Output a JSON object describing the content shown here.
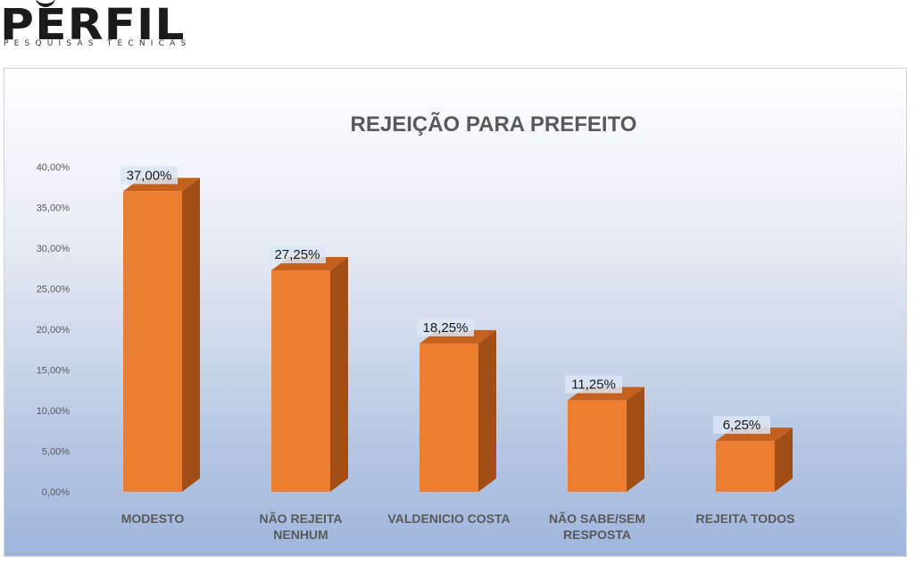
{
  "logo": {
    "brand": "PERFIL",
    "tagline": "PESQUISAS TÉCNICAS"
  },
  "colors": {
    "bar_front": "#ed7d31",
    "bar_side": "#a24f17",
    "bar_top": "#c4611f",
    "axis_text": "#595959",
    "category_text": "#595959",
    "title_text": "#595959",
    "label_bg": "#dbe5f3"
  },
  "chart_data": {
    "type": "bar",
    "title": "REJEIÇÃO PARA PREFEITO",
    "xlabel": "",
    "ylabel": "",
    "categories": [
      "MODESTO",
      "NÃO REJEITA NENHUM",
      "VALDENICIO COSTA",
      "NÃO SABE/SEM RESPOSTA",
      "REJEITA TODOS"
    ],
    "category_lines": [
      [
        "MODESTO"
      ],
      [
        "NÃO REJEITA",
        "NENHUM"
      ],
      [
        "VALDENICIO COSTA"
      ],
      [
        "NÃO SABE/SEM",
        "RESPOSTA"
      ],
      [
        "REJEITA TODOS"
      ]
    ],
    "values": [
      37.0,
      27.25,
      18.25,
      11.25,
      6.25
    ],
    "data_labels": [
      "37,00%",
      "27,25%",
      "18,25%",
      "11,25%",
      "6,25%"
    ],
    "ylim": [
      0,
      40
    ],
    "yticks": [
      0,
      5,
      10,
      15,
      20,
      25,
      30,
      35,
      40
    ],
    "ytick_labels": [
      "0,00%",
      "5,00%",
      "10,00%",
      "15,00%",
      "20,00%",
      "25,00%",
      "30,00%",
      "35,00%",
      "40,00%"
    ],
    "grid": false,
    "legend": "none",
    "style": "3d"
  }
}
